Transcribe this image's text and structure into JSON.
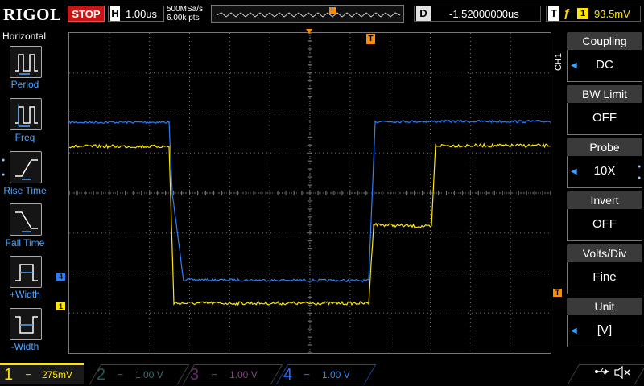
{
  "header": {
    "brand": "RIGOL",
    "run_state": "STOP",
    "timebase_letter": "H",
    "timebase": "1.00us",
    "sample_rate": "500MSa/s",
    "memory_depth": "6.00k pts",
    "delay_letter": "D",
    "delay": "-1.52000000us",
    "trigger_letter": "T",
    "trigger_edge_glyph": "ƒ",
    "trigger_source": "1",
    "trigger_level": "93.5mV",
    "trigger_marker_glyph": "T"
  },
  "left_menu": {
    "title": "Horizontal",
    "items": [
      {
        "label": "Period",
        "icon": "period-icon"
      },
      {
        "label": "Freq",
        "icon": "frequency-icon"
      },
      {
        "label": "Rise Time",
        "icon": "rise-time-icon"
      },
      {
        "label": "Fall Time",
        "icon": "fall-time-icon"
      },
      {
        "label": "+Width",
        "icon": "positive-width-icon"
      },
      {
        "label": "-Width",
        "icon": "negative-width-icon"
      }
    ]
  },
  "right_menu": {
    "channel_tag": "CH1",
    "items": [
      {
        "title": "Coupling",
        "value": "DC"
      },
      {
        "title": "BW Limit",
        "value": "OFF"
      },
      {
        "title": "Probe",
        "value": "10X"
      },
      {
        "title": "Invert",
        "value": "OFF"
      },
      {
        "title": "Volts/Div",
        "value": "Fine"
      },
      {
        "title": "Unit",
        "value": "[V]"
      }
    ]
  },
  "display": {
    "ch4_marker": "4",
    "ch1_marker": "1",
    "trigger_marker": "T",
    "colors": {
      "ch1": "#ffe600",
      "ch4": "#2a7fff",
      "grid": "#777777",
      "trigger": "#ff8c00"
    }
  },
  "bottom_bar": {
    "channels": [
      {
        "num": "1",
        "scale": "275mV"
      },
      {
        "num": "2",
        "scale": "1.00 V"
      },
      {
        "num": "3",
        "scale": "1.00 V"
      },
      {
        "num": "4",
        "scale": "1.00 V"
      }
    ],
    "usb_icon": "usb-icon",
    "speaker_icon": "speaker-muted-icon"
  }
}
